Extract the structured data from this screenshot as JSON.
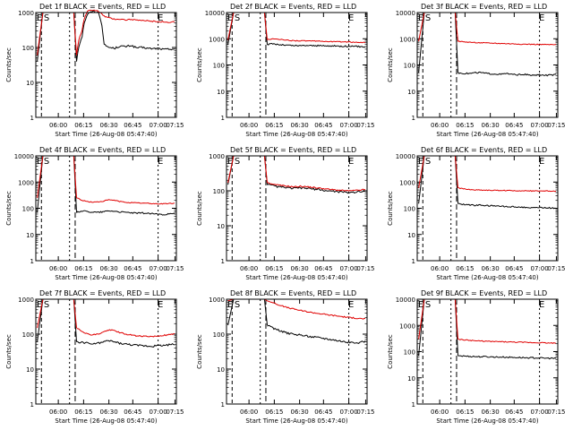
{
  "chart_data": [
    {
      "type": "line",
      "title": "Det 1f BLACK = Events, RED = LLD",
      "xlabel": "Start Time (26-Aug-08 05:47:40)",
      "ylabel": "Counts/sec",
      "xticks": [
        "06:00",
        "06:15",
        "06:30",
        "06:45",
        "07:00",
        "07:15"
      ],
      "yticks": [
        "1",
        "10",
        "100",
        "1000"
      ],
      "ylim": [
        1,
        1000
      ],
      "yscale": "log",
      "markers": [
        "E",
        "S",
        "E"
      ],
      "series": [
        {
          "color": "#000000",
          "values": [
            40,
            200,
            900,
            1100,
            1000,
            120,
            100,
            95,
            110,
            105,
            115,
            98,
            100,
            95,
            92,
            95,
            88,
            90,
            92
          ]
        },
        {
          "color": "#e00000",
          "values": [
            60,
            300,
            1100,
            1200,
            1100,
            800,
            700,
            650,
            650,
            620,
            640,
            600,
            590,
            580,
            560,
            550,
            540,
            520,
            540
          ]
        }
      ]
    },
    {
      "type": "line",
      "title": "Det 2f BLACK = Events, RED = LLD",
      "xlabel": "Start Time (26-Aug-08 05:47:40)",
      "ylabel": "Counts/sec",
      "xticks": [
        "06:00",
        "06:15",
        "06:30",
        "06:45",
        "07:00",
        "07:15"
      ],
      "yticks": [
        "1",
        "10",
        "100",
        "1000",
        "10000"
      ],
      "ylim": [
        1,
        10000
      ],
      "yscale": "log",
      "markers": [
        "E",
        "S",
        "E"
      ],
      "series": [
        {
          "color": "#000000",
          "values": [
            600,
            650,
            600,
            580,
            560,
            550,
            540,
            560,
            550,
            545,
            540,
            530,
            535,
            525,
            520,
            515,
            510,
            505,
            500
          ]
        },
        {
          "color": "#e00000",
          "values": [
            900,
            1000,
            950,
            900,
            870,
            850,
            840,
            830,
            820,
            810,
            800,
            790,
            780,
            770,
            760,
            750,
            740,
            730,
            720
          ]
        }
      ]
    },
    {
      "type": "line",
      "title": "Det 3f BLACK = Events, RED = LLD",
      "xlabel": "Start Time (26-Aug-08 05:47:40)",
      "ylabel": "Counts/sec",
      "xticks": [
        "06:00",
        "06:15",
        "06:30",
        "06:45",
        "07:00",
        "07:15"
      ],
      "yticks": [
        "1",
        "10",
        "100",
        "1000",
        "10000"
      ],
      "ylim": [
        1,
        10000
      ],
      "yscale": "log",
      "markers": [
        "E",
        "S",
        "E"
      ],
      "series": [
        {
          "color": "#000000",
          "values": [
            50,
            48,
            47,
            50,
            52,
            48,
            46,
            45,
            44,
            47,
            43,
            42,
            44,
            41,
            40,
            42,
            40,
            41,
            42
          ]
        },
        {
          "color": "#e00000",
          "values": [
            800,
            760,
            740,
            720,
            700,
            690,
            680,
            670,
            660,
            650,
            640,
            630,
            620,
            615,
            610,
            605,
            600,
            595,
            590
          ]
        }
      ]
    },
    {
      "type": "line",
      "title": "Det 4f BLACK = Events, RED = LLD",
      "xlabel": "Start Time (26-Aug-08 05:47:40)",
      "ylabel": "Counts/sec",
      "xticks": [
        "06:00",
        "06:15",
        "06:30",
        "06:45",
        "07:00",
        "07:15"
      ],
      "yticks": [
        "1",
        "10",
        "100",
        "1000",
        "10000"
      ],
      "ylim": [
        1,
        10000
      ],
      "yscale": "log",
      "markers": [
        "E",
        "S",
        "E"
      ],
      "series": [
        {
          "color": "#000000",
          "values": [
            70,
            80,
            75,
            72,
            70,
            75,
            80,
            78,
            72,
            70,
            68,
            65,
            66,
            64,
            62,
            60,
            58,
            60,
            62
          ]
        },
        {
          "color": "#e00000",
          "values": [
            250,
            200,
            180,
            170,
            175,
            190,
            210,
            200,
            180,
            170,
            165,
            160,
            158,
            155,
            150,
            148,
            150,
            152,
            155
          ]
        }
      ]
    },
    {
      "type": "line",
      "title": "Det 5f BLACK = Events, RED = LLD",
      "xlabel": "Start Time (26-Aug-08 05:47:40)",
      "ylabel": "Counts/sec",
      "xticks": [
        "06:00",
        "06:15",
        "06:30",
        "06:45",
        "07:00",
        "07:15"
      ],
      "yticks": [
        "1",
        "10",
        "100",
        "1000"
      ],
      "ylim": [
        1,
        1000
      ],
      "yscale": "log",
      "markers": [
        "E",
        "S",
        "E"
      ],
      "series": [
        {
          "color": "#000000",
          "values": [
            150,
            140,
            130,
            125,
            120,
            118,
            122,
            120,
            115,
            110,
            105,
            100,
            98,
            95,
            92,
            90,
            92,
            95,
            98
          ]
        },
        {
          "color": "#e00000",
          "values": [
            170,
            155,
            145,
            140,
            135,
            130,
            135,
            132,
            128,
            122,
            118,
            112,
            108,
            105,
            102,
            100,
            102,
            105,
            110
          ]
        }
      ]
    },
    {
      "type": "line",
      "title": "Det 6f BLACK = Events, RED = LLD",
      "xlabel": "Start Time (26-Aug-08 05:47:40)",
      "ylabel": "Counts/sec",
      "xticks": [
        "06:00",
        "06:15",
        "06:30",
        "06:45",
        "07:00",
        "07:15"
      ],
      "yticks": [
        "1",
        "10",
        "100",
        "1000",
        "10000"
      ],
      "ylim": [
        1,
        10000
      ],
      "yscale": "log",
      "markers": [
        "E",
        "S",
        "E"
      ],
      "series": [
        {
          "color": "#000000",
          "values": [
            150,
            140,
            135,
            130,
            132,
            128,
            125,
            122,
            120,
            118,
            115,
            112,
            110,
            108,
            106,
            105,
            104,
            103,
            102
          ]
        },
        {
          "color": "#e00000",
          "values": [
            600,
            550,
            520,
            500,
            500,
            490,
            485,
            480,
            480,
            475,
            470,
            470,
            465,
            462,
            460,
            458,
            456,
            455,
            455
          ]
        }
      ]
    },
    {
      "type": "line",
      "title": "Det 7f BLACK = Events, RED = LLD",
      "xlabel": "Start Time (26-Aug-08 05:47:40)",
      "ylabel": "Counts/sec",
      "xticks": [
        "06:00",
        "06:15",
        "06:30",
        "06:45",
        "07:00",
        "07:15"
      ],
      "yticks": [
        "1",
        "10",
        "100",
        "1000"
      ],
      "ylim": [
        1,
        1000
      ],
      "yscale": "log",
      "markers": [
        "E",
        "S",
        "E"
      ],
      "series": [
        {
          "color": "#000000",
          "values": [
            60,
            58,
            55,
            52,
            55,
            60,
            65,
            60,
            55,
            52,
            50,
            48,
            47,
            46,
            45,
            47,
            48,
            50,
            52
          ]
        },
        {
          "color": "#e00000",
          "values": [
            150,
            120,
            100,
            95,
            100,
            115,
            135,
            125,
            110,
            100,
            95,
            90,
            88,
            86,
            85,
            88,
            92,
            96,
            100
          ]
        }
      ]
    },
    {
      "type": "line",
      "title": "Det 8f BLACK = Events, RED = LLD",
      "xlabel": "Start Time (26-Aug-08 05:47:40)",
      "ylabel": "Counts/sec",
      "xticks": [
        "06:00",
        "06:15",
        "06:30",
        "06:45",
        "07:00",
        "07:15"
      ],
      "yticks": [
        "1",
        "10",
        "100",
        "1000"
      ],
      "ylim": [
        1,
        1000
      ],
      "yscale": "log",
      "markers": [
        "E",
        "S",
        "E"
      ],
      "series": [
        {
          "color": "#000000",
          "values": [
            180,
            150,
            130,
            115,
            105,
            98,
            95,
            90,
            85,
            82,
            78,
            74,
            70,
            66,
            62,
            58,
            55,
            58,
            62
          ]
        },
        {
          "color": "#e00000",
          "values": [
            900,
            800,
            700,
            620,
            560,
            520,
            480,
            450,
            420,
            400,
            380,
            360,
            345,
            330,
            315,
            300,
            290,
            280,
            275
          ]
        }
      ]
    },
    {
      "type": "line",
      "title": "Det 9f BLACK = Events, RED = LLD",
      "xlabel": "Start Time (26-Aug-08 05:47:40)",
      "ylabel": "Counts/sec",
      "xticks": [
        "06:00",
        "06:15",
        "06:30",
        "06:45",
        "07:00",
        "07:15"
      ],
      "yticks": [
        "1",
        "10",
        "100",
        "1000",
        "10000"
      ],
      "ylim": [
        1,
        10000
      ],
      "yscale": "log",
      "markers": [
        "E",
        "S",
        "E"
      ],
      "series": [
        {
          "color": "#000000",
          "values": [
            70,
            68,
            66,
            65,
            64,
            64,
            63,
            62,
            62,
            61,
            60,
            60,
            59,
            58,
            58,
            57,
            56,
            56,
            55
          ]
        },
        {
          "color": "#e00000",
          "values": [
            300,
            280,
            270,
            260,
            255,
            250,
            245,
            240,
            238,
            235,
            230,
            228,
            225,
            222,
            220,
            218,
            215,
            212,
            210
          ]
        }
      ]
    }
  ]
}
